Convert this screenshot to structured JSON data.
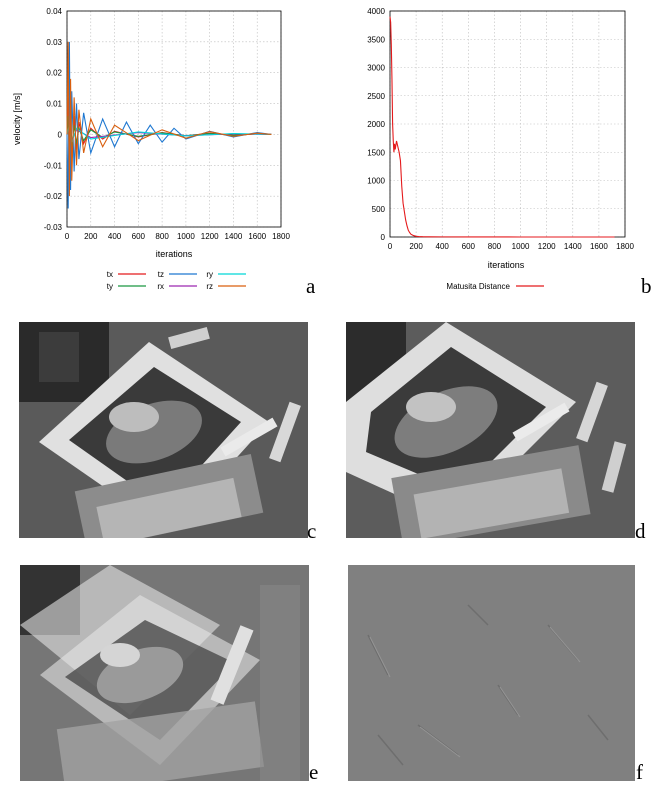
{
  "panel_labels": {
    "a": "a",
    "b": "b",
    "c": "c",
    "d": "d",
    "e": "e",
    "f": "f"
  },
  "chart_data": [
    {
      "type": "line",
      "title": "",
      "xlabel": "iterations",
      "ylabel": "velocity [m/s]",
      "xlim": [
        0,
        1800
      ],
      "ylim": [
        -0.03,
        0.04
      ],
      "xticks": [
        "0",
        "200",
        "400",
        "600",
        "800",
        "1000",
        "1200",
        "1400",
        "1600",
        "1800"
      ],
      "yticks": [
        "-0.03",
        "-0.02",
        "-0.01",
        "0",
        "0.01",
        "0.02",
        "0.03",
        "0.04"
      ],
      "grid": true,
      "legend_position": "bottom",
      "series": [
        {
          "name": "tx",
          "color": "#e41a1c",
          "x": [
            0,
            10,
            20,
            30,
            40,
            60,
            80,
            100,
            140,
            200,
            300,
            400,
            600,
            800,
            1000,
            1200,
            1400,
            1600,
            1720
          ],
          "y": [
            0,
            0.012,
            -0.01,
            0.011,
            -0.008,
            0.006,
            -0.005,
            0.004,
            -0.003,
            0.002,
            -0.0015,
            0.001,
            -0.0008,
            0.0006,
            -0.0005,
            0.0004,
            -0.0003,
            0.0002,
            0
          ]
        },
        {
          "name": "ty",
          "color": "#1a9641",
          "x": [
            0,
            10,
            20,
            30,
            40,
            60,
            80,
            100,
            140,
            200,
            300,
            400,
            600,
            800,
            1000,
            1200,
            1400,
            1600,
            1720
          ],
          "y": [
            0,
            0.006,
            -0.006,
            0.005,
            -0.004,
            0.003,
            -0.003,
            0.002,
            -0.002,
            0.0015,
            -0.001,
            0.0008,
            -0.0006,
            0.0005,
            -0.0004,
            0.0003,
            -0.0003,
            0.0002,
            0
          ]
        },
        {
          "name": "tz",
          "color": "#1f78d1",
          "x": [
            0,
            10,
            20,
            30,
            40,
            60,
            80,
            100,
            140,
            200,
            300,
            400,
            500,
            600,
            700,
            800,
            900,
            1000,
            1200,
            1400,
            1600,
            1720
          ],
          "y": [
            0,
            -0.024,
            0.03,
            -0.018,
            0.014,
            -0.012,
            0.01,
            -0.008,
            0.007,
            -0.006,
            0.005,
            -0.004,
            0.004,
            -0.003,
            0.003,
            -0.0025,
            0.002,
            -0.0015,
            0.001,
            -0.0008,
            0.0006,
            0
          ]
        },
        {
          "name": "rx",
          "color": "#9c27b0",
          "x": [
            0,
            20,
            40,
            80,
            200,
            600,
            1000,
            1400,
            1720
          ],
          "y": [
            0,
            0.002,
            -0.002,
            0.0015,
            -0.001,
            0.0006,
            -0.0004,
            0.0002,
            0
          ]
        },
        {
          "name": "ry",
          "color": "#00d8d8",
          "x": [
            0,
            20,
            40,
            80,
            200,
            600,
            1000,
            1400,
            1720
          ],
          "y": [
            0,
            0.003,
            -0.0025,
            0.002,
            -0.0015,
            0.0008,
            -0.0005,
            0.0003,
            0
          ]
        },
        {
          "name": "rz",
          "color": "#d95f0e",
          "x": [
            0,
            10,
            20,
            30,
            40,
            60,
            80,
            100,
            140,
            200,
            300,
            400,
            600,
            800,
            1000,
            1200,
            1400,
            1600,
            1720
          ],
          "y": [
            0,
            0.03,
            -0.02,
            0.018,
            -0.015,
            0.012,
            -0.01,
            0.008,
            -0.006,
            0.005,
            -0.004,
            0.003,
            -0.002,
            0.0015,
            -0.0012,
            0.0009,
            -0.0006,
            0.0004,
            0
          ]
        }
      ]
    },
    {
      "type": "line",
      "title": "",
      "xlabel": "iterations",
      "ylabel": "",
      "xlim": [
        0,
        1800
      ],
      "ylim": [
        0,
        4000
      ],
      "xticks": [
        "0",
        "200",
        "400",
        "600",
        "800",
        "1000",
        "1200",
        "1400",
        "1600",
        "1800"
      ],
      "yticks": [
        "0",
        "500",
        "1000",
        "1500",
        "2000",
        "2500",
        "3000",
        "3500",
        "4000"
      ],
      "grid": true,
      "legend_position": "bottom",
      "series": [
        {
          "name": "Matusita Distance",
          "color": "#e41a1c",
          "x": [
            0,
            5,
            10,
            15,
            20,
            25,
            30,
            35,
            40,
            50,
            60,
            70,
            80,
            90,
            100,
            110,
            120,
            130,
            140,
            150,
            160,
            180,
            200,
            220,
            250,
            300,
            400,
            600,
            800,
            1000,
            1200,
            1400,
            1600,
            1720
          ],
          "y": [
            3900,
            3800,
            3400,
            2800,
            2000,
            1700,
            1500,
            1650,
            1550,
            1700,
            1600,
            1500,
            1350,
            900,
            600,
            450,
            300,
            200,
            120,
            80,
            50,
            25,
            12,
            8,
            5,
            3,
            2,
            1,
            1,
            0,
            0,
            0,
            0,
            0
          ]
        }
      ]
    }
  ]
}
